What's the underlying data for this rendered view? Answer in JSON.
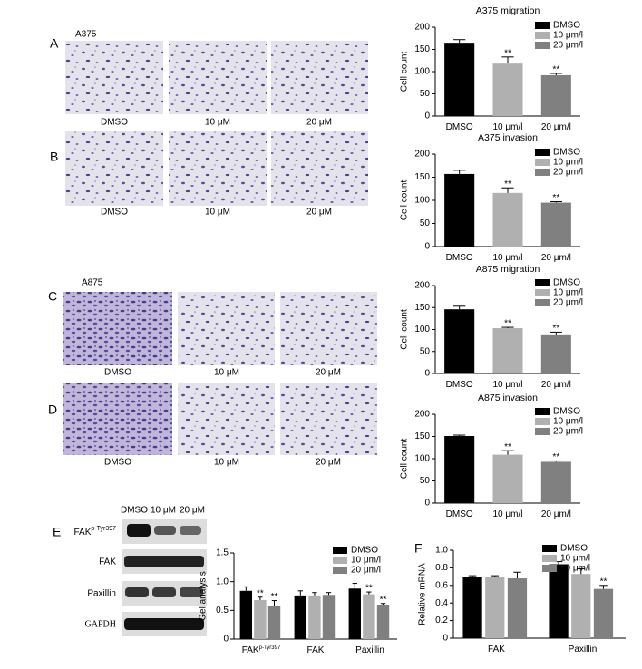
{
  "panels": {
    "A": {
      "letter": "A",
      "cell_line": "A375",
      "captions": [
        "DMSO",
        "10 μM",
        "20 μM"
      ]
    },
    "B": {
      "letter": "B",
      "captions": [
        "DMSO",
        "10 μM",
        "20 μM"
      ]
    },
    "C": {
      "letter": "C",
      "cell_line": "A875",
      "captions": [
        "DMSO",
        "10 μM",
        "20 μM"
      ]
    },
    "D": {
      "letter": "D",
      "captions": [
        "DMSO",
        "10 μM",
        "20 μM"
      ]
    },
    "E": {
      "letter": "E",
      "blot_columns": [
        "DMSO",
        "10 μM",
        "20 μM"
      ],
      "blot_rows": [
        "FAK",
        "FAK",
        "Paxillin",
        "GAPDH"
      ],
      "blot_row_superscripts": [
        "p-Tyr397",
        null,
        null,
        null
      ]
    },
    "F": {
      "letter": "F"
    }
  },
  "chart_data": [
    {
      "type": "bar",
      "title": "A375 migration",
      "y_label": "Cell count",
      "categories": [
        "DMSO",
        "10 μm/l",
        "20 μm/l"
      ],
      "values": [
        165,
        118,
        92
      ],
      "errors": [
        7,
        15,
        4
      ],
      "significance": [
        null,
        "**",
        "**"
      ],
      "colors": [
        "#000000",
        "#b0b0b0",
        "#808080"
      ],
      "legend": [
        "DMSO",
        "10 μm/l",
        "20 μm/l"
      ],
      "ylim": [
        0,
        200
      ],
      "yticks": [
        0,
        50,
        100,
        150,
        200
      ]
    },
    {
      "type": "bar",
      "title": "A375 invasion",
      "y_label": "Cell count",
      "categories": [
        "DMSO",
        "10 μm/l",
        "20 μm/l"
      ],
      "values": [
        157,
        116,
        95
      ],
      "errors": [
        8,
        11,
        2
      ],
      "significance": [
        null,
        "**",
        "**"
      ],
      "colors": [
        "#000000",
        "#b0b0b0",
        "#808080"
      ],
      "legend": [
        "DMSO",
        "10 μm/l",
        "20 μm/l"
      ],
      "ylim": [
        0,
        200
      ],
      "yticks": [
        0,
        50,
        100,
        150,
        200
      ]
    },
    {
      "type": "bar",
      "title": "A875 migration",
      "y_label": "Cell count",
      "categories": [
        "DMSO",
        "10 μm/l",
        "20 μm/l"
      ],
      "values": [
        146,
        103,
        89
      ],
      "errors": [
        7,
        2,
        5
      ],
      "significance": [
        null,
        "**",
        "**"
      ],
      "colors": [
        "#000000",
        "#b0b0b0",
        "#808080"
      ],
      "legend": [
        "DMSO",
        "10 μm/l",
        "20 μm/l"
      ],
      "ylim": [
        0,
        200
      ],
      "yticks": [
        0,
        50,
        100,
        150,
        200
      ]
    },
    {
      "type": "bar",
      "title": "A875 invasion",
      "y_label": "Cell count",
      "categories": [
        "DMSO",
        "10 μm/l",
        "20 μm/l"
      ],
      "values": [
        151,
        109,
        93
      ],
      "errors": [
        2,
        9,
        2
      ],
      "significance": [
        null,
        "**",
        "**"
      ],
      "colors": [
        "#000000",
        "#b0b0b0",
        "#808080"
      ],
      "legend": [
        "DMSO",
        "10 μm/l",
        "20 μm/l"
      ],
      "ylim": [
        0,
        200
      ],
      "yticks": [
        0,
        50,
        100,
        150,
        200
      ]
    },
    {
      "type": "grouped_bar",
      "y_label": "Gel analysis",
      "categories": [
        "FAK",
        "FAK",
        "Paxillin"
      ],
      "category_superscripts": [
        "p-Tyr397",
        null,
        null
      ],
      "series": [
        {
          "name": "DMSO",
          "color": "#000000",
          "values": [
            0.84,
            0.76,
            0.88
          ],
          "errors": [
            0.07,
            0.08,
            0.09
          ],
          "significance": [
            null,
            null,
            null
          ]
        },
        {
          "name": "10 μm/l",
          "color": "#b0b0b0",
          "values": [
            0.68,
            0.76,
            0.78
          ],
          "errors": [
            0.05,
            0.05,
            0.04
          ],
          "significance": [
            "**",
            null,
            "**"
          ]
        },
        {
          "name": "20 μm/l",
          "color": "#808080",
          "values": [
            0.57,
            0.77,
            0.6
          ],
          "errors": [
            0.1,
            0.04,
            0.02
          ],
          "significance": [
            "**",
            null,
            "**"
          ]
        }
      ],
      "ylim": [
        0,
        1.5
      ],
      "yticks": [
        0,
        0.5,
        {
          "value": 1,
          "label": "1.0"
        },
        1.5
      ]
    },
    {
      "type": "grouped_bar",
      "y_label": "Relative mRNA",
      "categories": [
        "FAK",
        "Paxillin"
      ],
      "series": [
        {
          "name": "DMSO",
          "color": "#000000",
          "values": [
            0.7,
            0.84
          ],
          "errors": [
            0.01,
            0.03
          ],
          "significance": [
            null,
            null
          ]
        },
        {
          "name": "10 μm/l",
          "color": "#b0b0b0",
          "values": [
            0.7,
            0.73
          ],
          "errors": [
            0.01,
            0.06
          ],
          "significance": [
            null,
            null
          ]
        },
        {
          "name": "20 μm/l",
          "color": "#808080",
          "values": [
            0.68,
            0.56
          ],
          "errors": [
            0.07,
            0.04
          ],
          "significance": [
            null,
            "**"
          ]
        }
      ],
      "ylim": [
        0,
        1
      ],
      "yticks": [
        0,
        0.2,
        0.4,
        0.6,
        0.8,
        {
          "value": 1,
          "label": "1.0"
        }
      ]
    }
  ]
}
